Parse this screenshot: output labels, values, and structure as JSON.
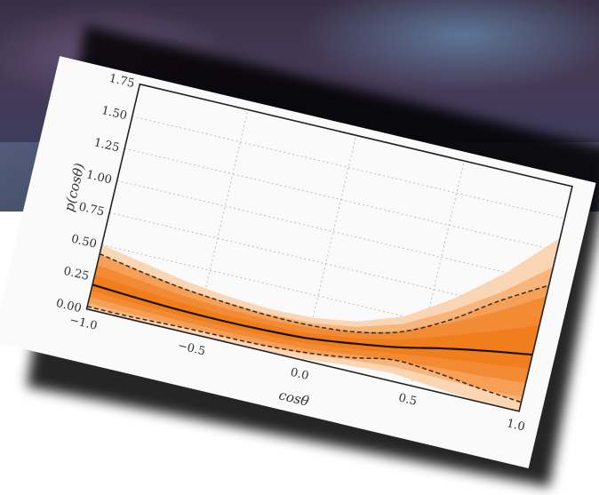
{
  "chart_data": {
    "type": "line",
    "title": "",
    "xlabel": "cosθ",
    "ylabel": "p(cosθ)",
    "xlim": [
      -1.0,
      1.0
    ],
    "ylim": [
      0.0,
      1.75
    ],
    "x_ticks": [
      "−1.0",
      "−0.5",
      "0.0",
      "0.5",
      "1.0"
    ],
    "y_ticks": [
      "0.00",
      "0.25",
      "0.50",
      "0.75",
      "1.00",
      "1.25",
      "1.50",
      "1.75"
    ],
    "grid": true,
    "x": [
      -1.0,
      -0.8,
      -0.6,
      -0.4,
      -0.2,
      0.0,
      0.2,
      0.4,
      0.6,
      0.8,
      1.0
    ],
    "median": [
      0.19,
      0.17,
      0.155,
      0.15,
      0.155,
      0.17,
      0.21,
      0.26,
      0.33,
      0.39,
      0.44
    ],
    "upper": [
      0.43,
      0.37,
      0.32,
      0.29,
      0.27,
      0.27,
      0.3,
      0.38,
      0.55,
      0.78,
      0.98
    ],
    "lower": [
      0.02,
      0.02,
      0.03,
      0.035,
      0.04,
      0.06,
      0.1,
      0.16,
      0.14,
      0.1,
      0.07
    ],
    "band_outer_upper": [
      0.5,
      0.44,
      0.38,
      0.34,
      0.32,
      0.33,
      0.38,
      0.5,
      0.72,
      1.0,
      1.35
    ],
    "band_outer_lower": [
      0.0,
      0.0,
      0.0,
      0.0,
      0.0,
      0.01,
      0.04,
      0.06,
      0.03,
      0.0,
      0.0
    ],
    "colors": {
      "band": "#f07810",
      "band_light": "#fbd2ad",
      "median_line": "#1a1208",
      "bound_line": "#3a2a1a",
      "grid": "#bcbcbc",
      "axis": "#222222"
    }
  }
}
